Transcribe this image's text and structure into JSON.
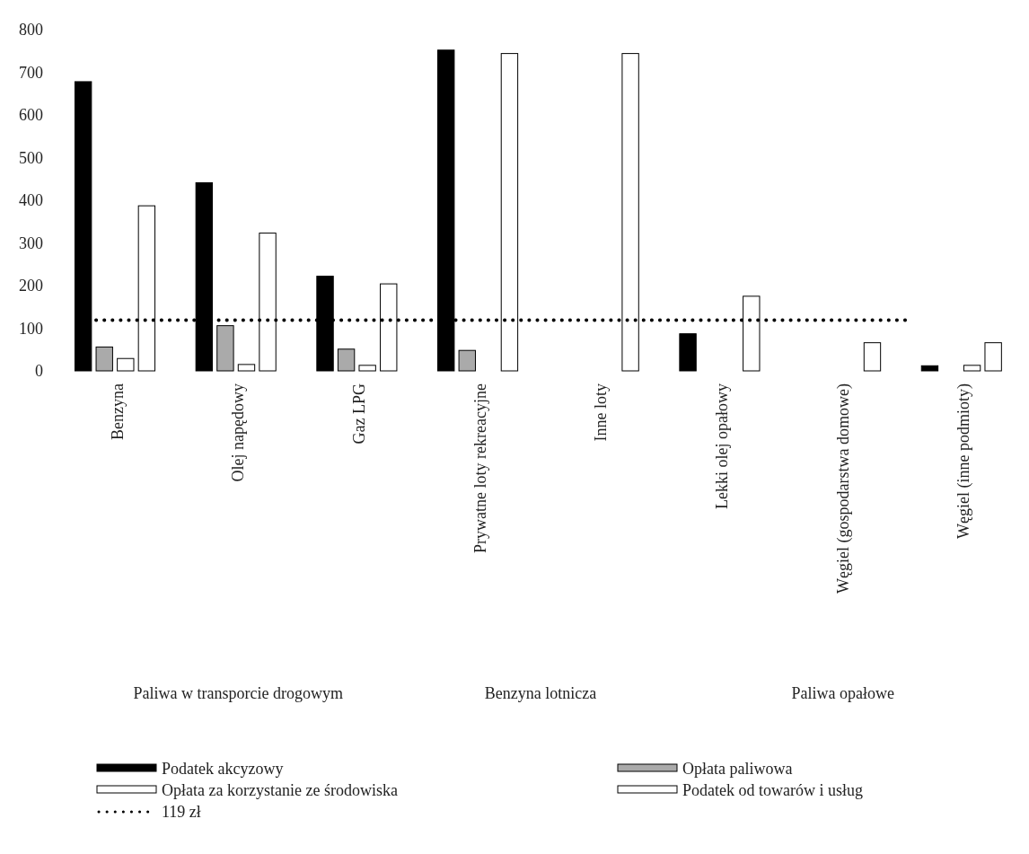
{
  "chart_data": {
    "type": "bar",
    "categories": [
      "Benzyna",
      "Olej napędowy",
      "Gaz LPG",
      "Prywatne loty rekreacyjne",
      "Inne loty",
      "Lekki olej opałowy",
      "Węgiel (gospodarstwa domowe)",
      "Węgiel (inne podmioty)"
    ],
    "series": [
      {
        "name": "Podatek akcyzowy",
        "color": "#000000",
        "values": [
          678,
          441,
          222,
          752,
          null,
          87,
          null,
          12
        ]
      },
      {
        "name": "Opłata paliwowa",
        "color": "#aaaaaa",
        "values": [
          56,
          106,
          51,
          48,
          null,
          null,
          null,
          null
        ]
      },
      {
        "name": "Opłata za korzystanie ze środowiska",
        "color": "#ffffff",
        "values": [
          29,
          15,
          13,
          null,
          null,
          null,
          null,
          13
        ]
      },
      {
        "name": "Podatek od towarów i usług",
        "color": "#ffffff",
        "values": [
          387,
          323,
          204,
          744,
          744,
          175,
          66,
          66
        ]
      }
    ],
    "ylim": [
      0,
      800
    ],
    "yticks": [
      0,
      100,
      200,
      300,
      400,
      500,
      600,
      700,
      800
    ],
    "ref_lines": [
      {
        "axis": "y",
        "value": 119,
        "label": "119 zł",
        "color": "#000000",
        "line_style": "dotted"
      }
    ],
    "annotations": [
      "Paliwa w transporcie drogowym",
      "Benzyna lotnicza",
      "Paliwa opałowe"
    ],
    "legend": "bottom",
    "grid": false
  }
}
